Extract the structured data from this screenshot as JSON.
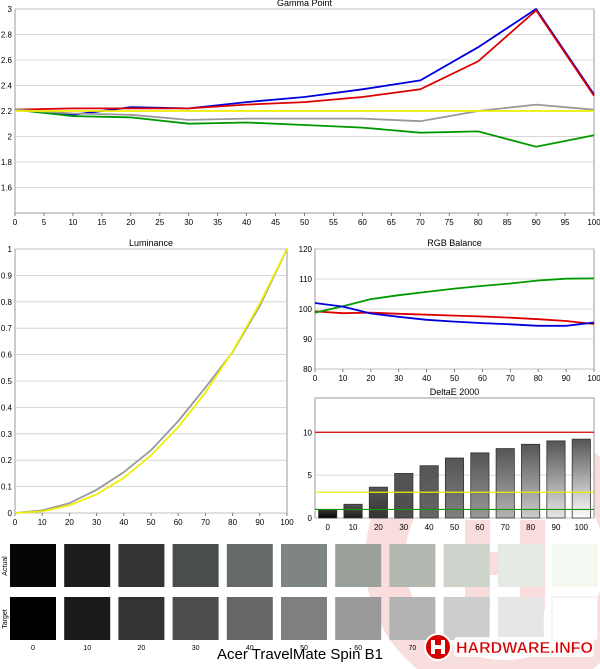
{
  "chart_data": [
    {
      "type": "line",
      "title": "Gamma Point",
      "x": [
        0,
        10,
        20,
        30,
        40,
        50,
        60,
        70,
        80,
        90,
        100
      ],
      "xticks": [
        0,
        5,
        10,
        15,
        20,
        25,
        30,
        35,
        40,
        45,
        50,
        55,
        60,
        65,
        70,
        75,
        80,
        85,
        90,
        95,
        100
      ],
      "yticks": [
        1.6,
        1.8,
        2,
        2.2,
        2.4,
        2.6,
        2.8,
        3
      ],
      "xlim": [
        0,
        100
      ],
      "ylim": [
        1.4,
        3
      ],
      "series": [
        {
          "color": "#0000dd",
          "values": [
            2.21,
            2.17,
            2.23,
            2.22,
            2.27,
            2.31,
            2.37,
            2.44,
            2.7,
            3.0,
            2.33
          ]
        },
        {
          "color": "#dd0000",
          "values": [
            2.21,
            2.22,
            2.22,
            2.22,
            2.25,
            2.27,
            2.31,
            2.37,
            2.59,
            2.99,
            2.32
          ]
        },
        {
          "color": "#009900",
          "values": [
            2.21,
            2.16,
            2.15,
            2.1,
            2.11,
            2.09,
            2.07,
            2.03,
            2.04,
            1.92,
            2.01
          ]
        },
        {
          "color": "#999999",
          "values": [
            2.21,
            2.18,
            2.17,
            2.13,
            2.14,
            2.14,
            2.14,
            2.12,
            2.2,
            2.25,
            2.21
          ]
        },
        {
          "color": "#eeee00",
          "values": [
            2.2,
            2.2,
            2.2,
            2.2,
            2.2,
            2.2,
            2.2,
            2.2,
            2.2,
            2.2,
            2.2
          ]
        }
      ]
    },
    {
      "type": "line",
      "title": "Luminance",
      "x": [
        0,
        10,
        20,
        30,
        40,
        50,
        60,
        70,
        80,
        90,
        100
      ],
      "xticks": [
        0,
        10,
        20,
        30,
        40,
        50,
        60,
        70,
        80,
        90,
        100
      ],
      "yticks": [
        0,
        0.1,
        0.2,
        0.3,
        0.4,
        0.5,
        0.6,
        0.7,
        0.8,
        0.9,
        1
      ],
      "xlim": [
        0,
        100
      ],
      "ylim": [
        0,
        1
      ],
      "series": [
        {
          "color": "#999999",
          "values": [
            0,
            0.01,
            0.037,
            0.088,
            0.155,
            0.238,
            0.348,
            0.475,
            0.61,
            0.785,
            1
          ]
        },
        {
          "color": "#eeee00",
          "values": [
            0,
            0.006,
            0.029,
            0.071,
            0.133,
            0.218,
            0.325,
            0.456,
            0.612,
            0.793,
            1
          ]
        }
      ]
    },
    {
      "type": "line",
      "title": "RGB Balance",
      "x": [
        0,
        10,
        20,
        30,
        40,
        50,
        60,
        70,
        80,
        90,
        100
      ],
      "xticks": [
        0,
        10,
        20,
        30,
        40,
        50,
        60,
        70,
        80,
        90,
        100
      ],
      "yticks": [
        80,
        90,
        100,
        110,
        120
      ],
      "xlim": [
        0,
        100
      ],
      "ylim": [
        80,
        120
      ],
      "series": [
        {
          "color": "#dd0000",
          "values": [
            99.2,
            98.6,
            98.8,
            98.4,
            98.1,
            97.8,
            97.5,
            97.1,
            96.6,
            96.0,
            95.0
          ]
        },
        {
          "color": "#009900",
          "values": [
            98.8,
            100.9,
            103.3,
            104.6,
            105.7,
            106.8,
            107.7,
            108.5,
            109.5,
            110.1,
            110.2
          ]
        },
        {
          "color": "#0000dd",
          "values": [
            102.0,
            100.8,
            98.5,
            97.4,
            96.4,
            95.8,
            95.3,
            94.9,
            94.4,
            94.4,
            95.5
          ]
        }
      ]
    },
    {
      "type": "bar",
      "title": "DeltaE 2000",
      "categories": [
        "0",
        "10",
        "20",
        "30",
        "40",
        "50",
        "60",
        "70",
        "80",
        "90",
        "100"
      ],
      "values": [
        0.9,
        1.6,
        3.6,
        5.2,
        6.1,
        7.0,
        7.6,
        8.1,
        8.6,
        9.0,
        9.2
      ],
      "yticks": [
        0,
        5,
        10
      ],
      "ylim": [
        0,
        14
      ],
      "reference_lines": [
        {
          "value": 10,
          "color": "#dd0000"
        },
        {
          "value": 3,
          "color": "#eeee00"
        },
        {
          "value": 1,
          "color": "#009900"
        }
      ]
    }
  ],
  "swatches": {
    "actual_label": "Actual",
    "target_label": "Target",
    "labels": [
      "0",
      "10",
      "20",
      "30",
      "40",
      "50",
      "60",
      "70",
      "80",
      "90",
      "100"
    ],
    "actual_colors": [
      "#050505",
      "#1b1c1c",
      "#323533",
      "#4a4e4b",
      "#656a66",
      "#7f8580",
      "#999f99",
      "#b2b8b0",
      "#cdd2ca",
      "#e5ebe2",
      "#f3f8f1"
    ],
    "target_colors": [
      "#000000",
      "#1a1a1a",
      "#333333",
      "#4d4d4d",
      "#666666",
      "#808080",
      "#999999",
      "#b3b3b3",
      "#cccccc",
      "#e6e6e6",
      "#ffffff"
    ]
  },
  "footer": {
    "title": "Acer TravelMate Spin B1"
  },
  "logo": {
    "text": "HARDWARE.INFO"
  }
}
